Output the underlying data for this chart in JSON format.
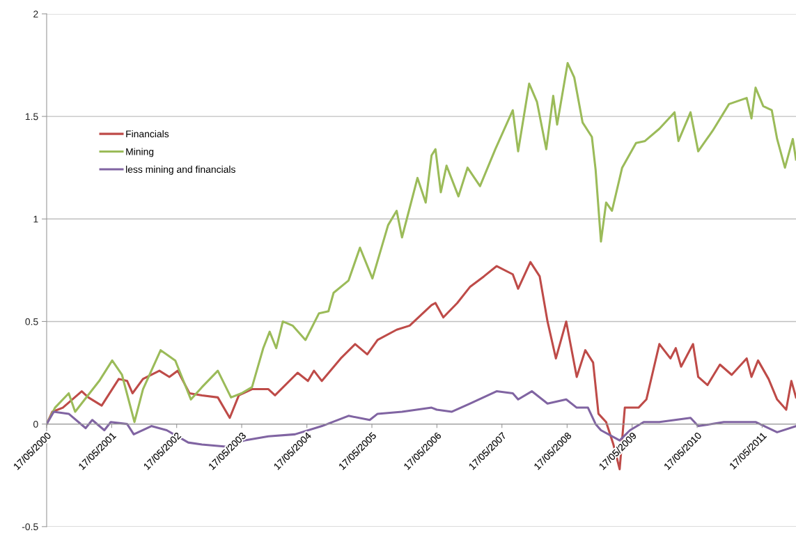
{
  "chart_data": {
    "type": "line",
    "xlim": [
      "2000-05-17",
      "2011-11-23"
    ],
    "xticks": [
      {
        "value": "2000-05-17",
        "label": "17/05/2000"
      },
      {
        "value": "2001-05-17",
        "label": "17/05/2001"
      },
      {
        "value": "2002-05-17",
        "label": "17/05/2002"
      },
      {
        "value": "2003-05-17",
        "label": "17/05/2003"
      },
      {
        "value": "2004-05-17",
        "label": "17/05/2004"
      },
      {
        "value": "2005-05-17",
        "label": "17/05/2005"
      },
      {
        "value": "2006-05-17",
        "label": "17/05/2006"
      },
      {
        "value": "2007-05-17",
        "label": "17/05/2007"
      },
      {
        "value": "2008-05-17",
        "label": "17/05/2008"
      },
      {
        "value": "2009-05-17",
        "label": "17/05/2009"
      },
      {
        "value": "2010-05-17",
        "label": "17/05/2010"
      },
      {
        "value": "2011-05-17",
        "label": "17/05/2011"
      }
    ],
    "ylim": [
      -0.5,
      2
    ],
    "yticks": [
      -0.5,
      0,
      0.5,
      1,
      1.5,
      2
    ],
    "grid": "y",
    "legend": "top left",
    "marker": "none",
    "line_style": "solid",
    "series": [
      {
        "name": "Financials",
        "color": "#be4b48",
        "x": [
          "2000-05-17",
          "2000-06-18",
          "2000-08-16",
          "2000-11-30",
          "2001-01-06",
          "2001-03-22",
          "2001-06-26",
          "2001-08-12",
          "2001-09-11",
          "2001-11-09",
          "2002-02-09",
          "2002-04-06",
          "2002-05-23",
          "2002-07-28",
          "2002-10-06",
          "2003-01-03",
          "2003-03-11",
          "2003-05-01",
          "2003-07-14",
          "2003-10-14",
          "2003-11-20",
          "2004-03-26",
          "2004-05-23",
          "2004-06-26",
          "2004-08-09",
          "2004-11-23",
          "2005-02-12",
          "2005-04-21",
          "2005-06-18",
          "2005-10-03",
          "2005-12-15",
          "2006-04-17",
          "2006-05-09",
          "2006-06-22",
          "2006-09-08",
          "2006-11-20",
          "2007-02-05",
          "2007-04-17",
          "2007-07-17",
          "2007-08-16",
          "2007-10-24",
          "2007-12-15",
          "2008-01-28",
          "2008-03-15",
          "2008-05-12",
          "2008-07-10",
          "2008-08-27",
          "2008-10-10",
          "2008-11-09",
          "2008-12-22",
          "2009-02-01",
          "2009-03-08",
          "2009-04-06",
          "2009-06-22",
          "2009-08-05",
          "2009-10-17",
          "2009-12-18",
          "2010-01-17",
          "2010-02-16",
          "2010-04-24",
          "2010-05-23",
          "2010-07-14",
          "2010-09-22",
          "2010-11-27",
          "2011-02-19",
          "2011-03-18",
          "2011-04-24",
          "2011-06-22",
          "2011-08-09",
          "2011-09-29",
          "2011-10-28",
          "2011-11-23"
        ],
        "values": [
          0.0,
          0.06,
          0.08,
          0.16,
          0.13,
          0.09,
          0.22,
          0.21,
          0.15,
          0.22,
          0.26,
          0.23,
          0.26,
          0.15,
          0.14,
          0.13,
          0.03,
          0.14,
          0.17,
          0.17,
          0.14,
          0.25,
          0.21,
          0.26,
          0.21,
          0.32,
          0.39,
          0.34,
          0.41,
          0.46,
          0.48,
          0.58,
          0.59,
          0.52,
          0.59,
          0.67,
          0.72,
          0.77,
          0.73,
          0.66,
          0.79,
          0.72,
          0.5,
          0.32,
          0.5,
          0.23,
          0.36,
          0.3,
          0.05,
          0.01,
          -0.1,
          -0.22,
          0.08,
          0.08,
          0.12,
          0.39,
          0.32,
          0.37,
          0.28,
          0.39,
          0.23,
          0.19,
          0.29,
          0.24,
          0.32,
          0.23,
          0.31,
          0.22,
          0.12,
          0.07,
          0.21,
          0.13
        ]
      },
      {
        "name": "Mining",
        "color": "#9bbb59",
        "x": [
          "2000-05-17",
          "2000-07-03",
          "2000-09-18",
          "2000-10-24",
          "2001-03-08",
          "2001-05-20",
          "2001-07-14",
          "2001-09-22",
          "2001-11-09",
          "2002-02-16",
          "2002-05-09",
          "2002-08-05",
          "2002-10-06",
          "2003-01-03",
          "2003-03-18",
          "2003-05-16",
          "2003-07-14",
          "2003-09-15",
          "2003-10-21",
          "2003-11-27",
          "2004-01-03",
          "2004-02-27",
          "2004-05-09",
          "2004-07-24",
          "2004-09-15",
          "2004-10-14",
          "2005-01-06",
          "2005-03-11",
          "2005-05-20",
          "2005-08-16",
          "2005-10-03",
          "2005-11-02",
          "2006-01-28",
          "2006-03-15",
          "2006-04-17",
          "2006-05-09",
          "2006-06-08",
          "2006-07-10",
          "2006-09-15",
          "2006-11-05",
          "2007-01-14",
          "2007-04-10",
          "2007-07-17",
          "2007-08-16",
          "2007-10-17",
          "2007-11-30",
          "2008-01-21",
          "2008-02-29",
          "2008-03-22",
          "2008-05-20",
          "2008-06-26",
          "2008-08-12",
          "2008-10-03",
          "2008-10-24",
          "2008-11-23",
          "2008-12-22",
          "2009-01-24",
          "2009-03-22",
          "2009-06-08",
          "2009-07-28",
          "2009-10-17",
          "2010-01-10",
          "2010-02-01",
          "2010-04-10",
          "2010-05-23",
          "2010-08-12",
          "2010-11-12",
          "2011-02-19",
          "2011-03-18",
          "2011-04-10",
          "2011-05-23",
          "2011-07-10",
          "2011-08-09",
          "2011-09-22",
          "2011-11-05",
          "2011-11-23"
        ],
        "values": [
          0.0,
          0.08,
          0.15,
          0.06,
          0.21,
          0.31,
          0.24,
          0.01,
          0.17,
          0.36,
          0.31,
          0.12,
          0.18,
          0.26,
          0.13,
          0.15,
          0.18,
          0.37,
          0.45,
          0.37,
          0.5,
          0.48,
          0.41,
          0.54,
          0.55,
          0.64,
          0.7,
          0.86,
          0.71,
          0.97,
          1.04,
          0.91,
          1.2,
          1.08,
          1.31,
          1.34,
          1.13,
          1.26,
          1.11,
          1.25,
          1.16,
          1.34,
          1.53,
          1.33,
          1.66,
          1.57,
          1.34,
          1.6,
          1.46,
          1.76,
          1.69,
          1.47,
          1.4,
          1.24,
          0.89,
          1.08,
          1.04,
          1.25,
          1.37,
          1.38,
          1.44,
          1.52,
          1.38,
          1.52,
          1.33,
          1.43,
          1.56,
          1.59,
          1.49,
          1.64,
          1.55,
          1.53,
          1.39,
          1.25,
          1.39,
          1.29
        ]
      },
      {
        "name": "less mining and financials",
        "color": "#8064a2",
        "x": [
          "2000-05-17",
          "2000-06-26",
          "2000-09-18",
          "2000-12-22",
          "2001-01-28",
          "2001-04-06",
          "2001-05-12",
          "2001-08-12",
          "2001-09-18",
          "2001-12-26",
          "2002-03-22",
          "2002-07-21",
          "2002-10-06",
          "2003-02-16",
          "2003-05-30",
          "2003-10-14",
          "2004-03-11",
          "2004-08-09",
          "2005-01-06",
          "2005-05-05",
          "2005-06-18",
          "2005-11-02",
          "2006-04-17",
          "2006-05-16",
          "2006-08-09",
          "2006-11-20",
          "2007-04-17",
          "2007-07-17",
          "2007-08-16",
          "2007-11-01",
          "2008-01-28",
          "2008-05-12",
          "2008-07-10",
          "2008-09-11",
          "2008-10-24",
          "2008-11-23",
          "2009-03-08",
          "2009-05-05",
          "2009-07-21",
          "2009-10-17",
          "2010-04-10",
          "2010-05-23",
          "2010-10-14",
          "2011-04-10",
          "2011-08-09",
          "2011-11-23"
        ],
        "values": [
          0.0,
          0.06,
          0.05,
          -0.02,
          0.02,
          -0.03,
          0.01,
          0.0,
          -0.05,
          -0.01,
          -0.03,
          -0.09,
          -0.1,
          -0.11,
          -0.08,
          -0.06,
          -0.05,
          -0.01,
          0.04,
          0.02,
          0.05,
          0.06,
          0.08,
          0.07,
          0.06,
          0.1,
          0.16,
          0.15,
          0.12,
          0.16,
          0.1,
          0.12,
          0.08,
          0.08,
          0.0,
          -0.03,
          -0.08,
          -0.03,
          0.01,
          0.01,
          0.03,
          -0.01,
          0.01,
          0.01,
          -0.04,
          -0.01
        ]
      }
    ]
  }
}
